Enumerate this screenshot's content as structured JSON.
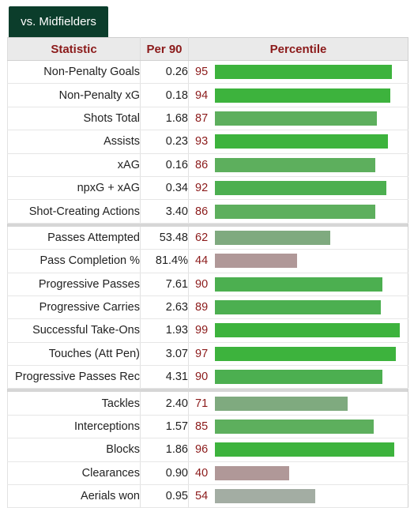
{
  "tab": {
    "label": "vs. Midfielders"
  },
  "headers": {
    "statistic": "Statistic",
    "per90": "Per 90",
    "percentile": "Percentile"
  },
  "colors": {
    "elite": "#3db33d",
    "high": "#4caf50",
    "above": "#5daf5d",
    "mid": "#7faa7f",
    "neutral": "#a3ada3",
    "low": "#b09898"
  },
  "groups": [
    [
      {
        "name": "Non-Penalty Goals",
        "per90": "0.26",
        "percentile": 95
      },
      {
        "name": "Non-Penalty xG",
        "per90": "0.18",
        "percentile": 94
      },
      {
        "name": "Shots Total",
        "per90": "1.68",
        "percentile": 87
      },
      {
        "name": "Assists",
        "per90": "0.23",
        "percentile": 93
      },
      {
        "name": "xAG",
        "per90": "0.16",
        "percentile": 86
      },
      {
        "name": "npxG + xAG",
        "per90": "0.34",
        "percentile": 92
      },
      {
        "name": "Shot-Creating Actions",
        "per90": "3.40",
        "percentile": 86
      }
    ],
    [
      {
        "name": "Passes Attempted",
        "per90": "53.48",
        "percentile": 62
      },
      {
        "name": "Pass Completion %",
        "per90": "81.4%",
        "percentile": 44
      },
      {
        "name": "Progressive Passes",
        "per90": "7.61",
        "percentile": 90
      },
      {
        "name": "Progressive Carries",
        "per90": "2.63",
        "percentile": 89
      },
      {
        "name": "Successful Take-Ons",
        "per90": "1.93",
        "percentile": 99
      },
      {
        "name": "Touches (Att Pen)",
        "per90": "3.07",
        "percentile": 97
      },
      {
        "name": "Progressive Passes Rec",
        "per90": "4.31",
        "percentile": 90
      }
    ],
    [
      {
        "name": "Tackles",
        "per90": "2.40",
        "percentile": 71
      },
      {
        "name": "Interceptions",
        "per90": "1.57",
        "percentile": 85
      },
      {
        "name": "Blocks",
        "per90": "1.86",
        "percentile": 96
      },
      {
        "name": "Clearances",
        "per90": "0.90",
        "percentile": 40
      },
      {
        "name": "Aerials won",
        "per90": "0.95",
        "percentile": 54
      }
    ]
  ]
}
